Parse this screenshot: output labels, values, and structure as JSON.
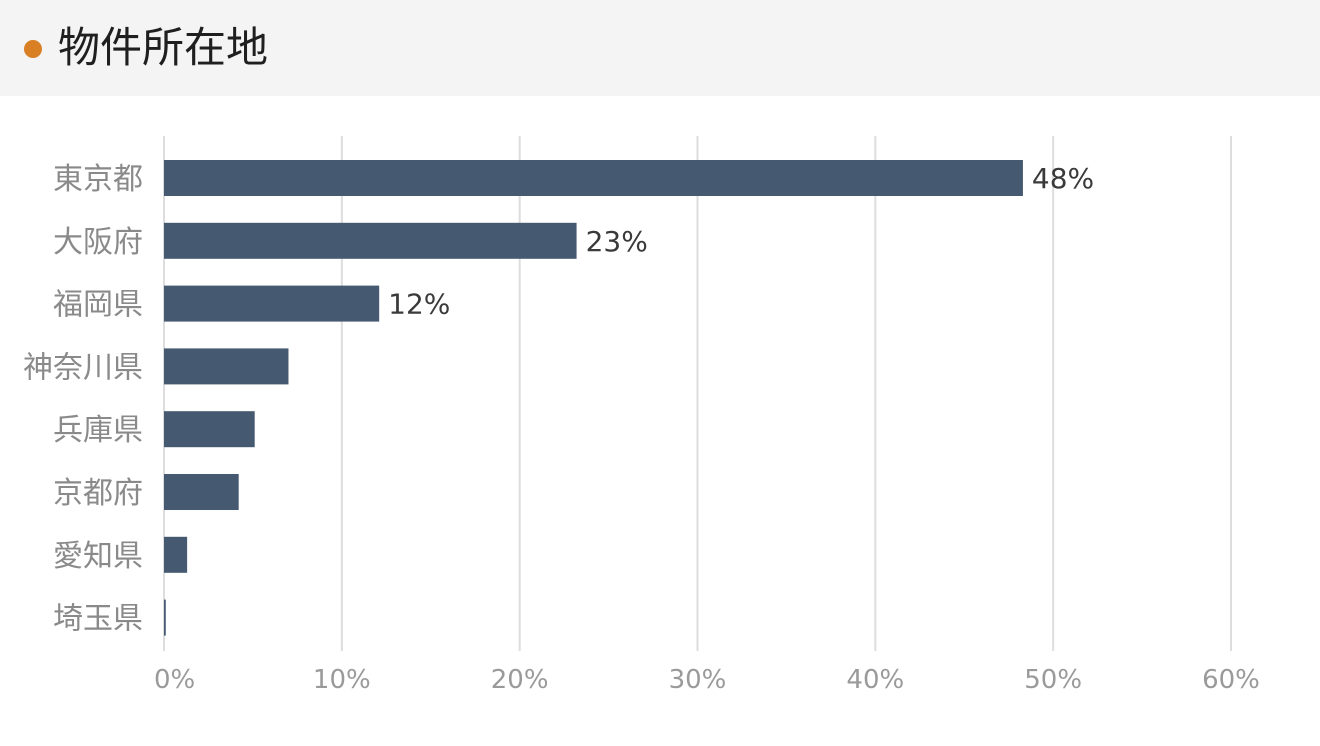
{
  "header": {
    "title": "物件所在地"
  },
  "colors": {
    "accent_dot": "#d97f24",
    "bar": "#455a71",
    "grid": "#dddddd"
  },
  "chart_data": {
    "type": "bar",
    "orientation": "horizontal",
    "categories": [
      "東京都",
      "大阪府",
      "福岡県",
      "神奈川県",
      "兵庫県",
      "京都府",
      "愛知県",
      "埼玉県"
    ],
    "values": [
      48.3,
      23.2,
      12.1,
      7.0,
      5.1,
      4.2,
      1.3,
      0.1
    ],
    "data_labels": [
      "48%",
      "23%",
      "12%",
      "",
      "",
      "",
      "",
      ""
    ],
    "x_ticks": [
      "0%",
      "10%",
      "20%",
      "30%",
      "40%",
      "50%",
      "60%"
    ],
    "xlim": [
      0,
      60
    ],
    "grid": true
  }
}
